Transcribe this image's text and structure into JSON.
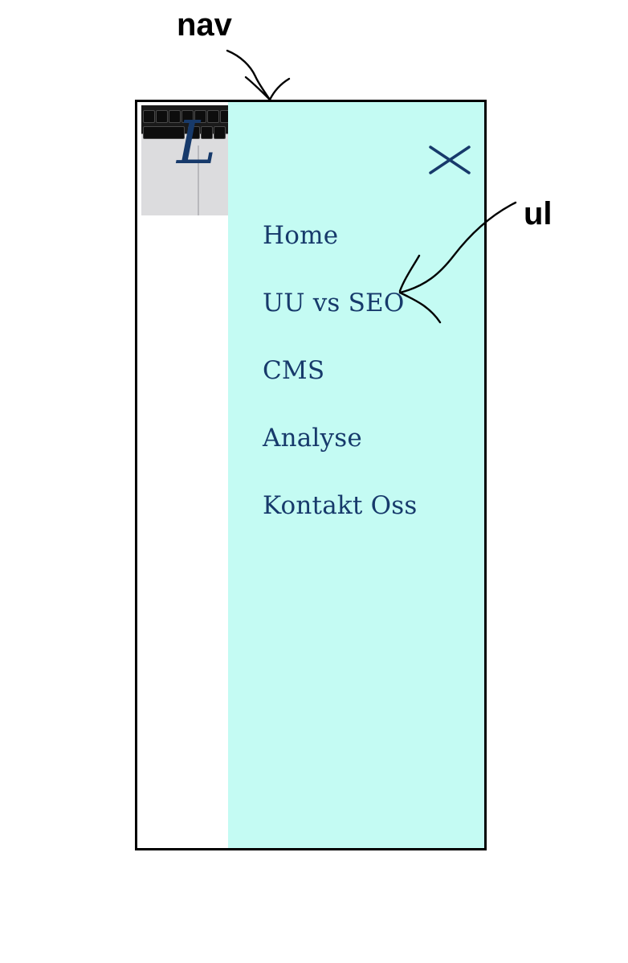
{
  "annotations": {
    "nav_label": "nav",
    "ul_label": "ul"
  },
  "menu": {
    "items": [
      {
        "label": "Home"
      },
      {
        "label": "UU vs SEO"
      },
      {
        "label": "CMS"
      },
      {
        "label": "Analyse"
      },
      {
        "label": "Kontakt Oss"
      }
    ],
    "close_icon": "close-icon"
  },
  "hero": {
    "logo_glyph": "L",
    "image": "laptop-keyboard-photo"
  },
  "colors": {
    "menu_background": "#c4fbf3",
    "menu_text": "#173a6b",
    "frame": "#000000",
    "annotation": "#000000"
  }
}
